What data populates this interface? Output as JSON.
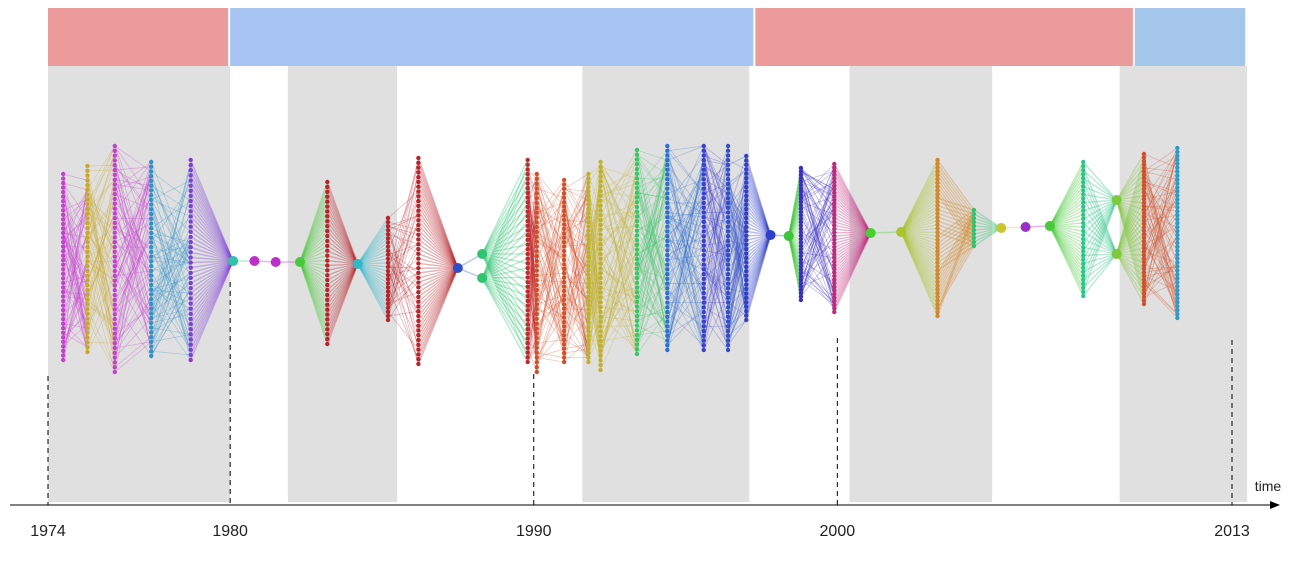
{
  "axis": {
    "label": "time",
    "start_year": 1974,
    "end_year": 2013,
    "tick_years": [
      {
        "year": 1974,
        "label": "1974"
      },
      {
        "year": 1980,
        "label": "1980"
      },
      {
        "year": 1990,
        "label": "1990"
      },
      {
        "year": 2000,
        "label": "2000"
      },
      {
        "year": 2013,
        "label": "2013"
      }
    ]
  },
  "colors": {
    "period_red": "#eb9b9b",
    "period_blue": "#a6c3f2",
    "period_blue_light": "#a3c6ea",
    "shade_gray": "#e0e0e0",
    "axis": "#000000"
  },
  "periods": [
    {
      "start": 1974,
      "end": 1980,
      "color": "#eb9b9b"
    },
    {
      "start": 1980,
      "end": 1997.3,
      "color": "#a6c3f2"
    },
    {
      "start": 1997.3,
      "end": 2009.8,
      "color": "#eb9b9b"
    },
    {
      "start": 2009.8,
      "end": 2013.5,
      "color": "#a3c6ea"
    }
  ],
  "shaded_bands": [
    {
      "start": 1974,
      "end": 1980
    },
    {
      "start": 1981.9,
      "end": 1985.5
    },
    {
      "start": 1991.6,
      "end": 1997.1
    },
    {
      "start": 2000.4,
      "end": 2005.1
    },
    {
      "start": 2009.3,
      "end": 2013.5
    }
  ],
  "layers": [
    {
      "year": 1974.5,
      "count": 42,
      "top": 174,
      "bottom": 360,
      "color": "#c73fd1"
    },
    {
      "year": 1975.3,
      "count": 40,
      "top": 166,
      "bottom": 352,
      "color": "#c9a92c"
    },
    {
      "year": 1976.2,
      "count": 48,
      "top": 146,
      "bottom": 372,
      "color": "#c73fd1"
    },
    {
      "year": 1977.4,
      "count": 42,
      "top": 162,
      "bottom": 356,
      "color": "#2f93c9"
    },
    {
      "year": 1978.7,
      "count": 40,
      "top": 160,
      "bottom": 360,
      "color": "#7f3fd6"
    },
    {
      "year": 1980.1,
      "count": 1,
      "top": 261,
      "bottom": 261,
      "color": "#2fc4a9",
      "big": true
    },
    {
      "year": 1980.8,
      "count": 1,
      "top": 261,
      "bottom": 261,
      "color": "#bd2fc9",
      "big": true
    },
    {
      "year": 1981.5,
      "count": 1,
      "top": 262,
      "bottom": 262,
      "color": "#bd2fc9",
      "big": true
    },
    {
      "year": 1982.3,
      "count": 1,
      "top": 262,
      "bottom": 262,
      "color": "#47c93a",
      "big": true
    },
    {
      "year": 1983.2,
      "count": 34,
      "top": 182,
      "bottom": 344,
      "color": "#b8242a"
    },
    {
      "year": 1984.2,
      "count": 1,
      "top": 264,
      "bottom": 264,
      "color": "#2fb8c9",
      "big": true
    },
    {
      "year": 1985.2,
      "count": 26,
      "top": 218,
      "bottom": 320,
      "color": "#b8242a"
    },
    {
      "year": 1986.2,
      "count": 44,
      "top": 158,
      "bottom": 364,
      "color": "#b8242a"
    },
    {
      "year": 1987.5,
      "count": 1,
      "top": 268,
      "bottom": 268,
      "color": "#2f4fc9",
      "big": true
    },
    {
      "year": 1988.3,
      "count": 2,
      "top": 254,
      "bottom": 278,
      "color": "#2fc46f",
      "big": true
    },
    {
      "year": 1989.8,
      "count": 44,
      "top": 160,
      "bottom": 362,
      "color": "#c0292d"
    },
    {
      "year": 1990.1,
      "count": 42,
      "top": 174,
      "bottom": 372,
      "color": "#d1502a"
    },
    {
      "year": 1991.0,
      "count": 42,
      "top": 180,
      "bottom": 362,
      "color": "#d1502a"
    },
    {
      "year": 1991.8,
      "count": 44,
      "top": 174,
      "bottom": 362,
      "color": "#c2b02a"
    },
    {
      "year": 1992.2,
      "count": 44,
      "top": 162,
      "bottom": 370,
      "color": "#c2b02a"
    },
    {
      "year": 1993.4,
      "count": 44,
      "top": 150,
      "bottom": 354,
      "color": "#3cc466"
    },
    {
      "year": 1994.4,
      "count": 44,
      "top": 146,
      "bottom": 350,
      "color": "#2f6fd1"
    },
    {
      "year": 1995.6,
      "count": 44,
      "top": 146,
      "bottom": 350,
      "color": "#3a3fd1"
    },
    {
      "year": 1996.4,
      "count": 44,
      "top": 146,
      "bottom": 350,
      "color": "#2f4fc9"
    },
    {
      "year": 1997.0,
      "count": 38,
      "top": 156,
      "bottom": 320,
      "color": "#2f3fc9"
    },
    {
      "year": 1997.8,
      "count": 1,
      "top": 235,
      "bottom": 235,
      "color": "#2f3fc9",
      "big": true
    },
    {
      "year": 1998.4,
      "count": 1,
      "top": 236,
      "bottom": 236,
      "color": "#3cc43a",
      "big": true
    },
    {
      "year": 1998.8,
      "count": 40,
      "top": 168,
      "bottom": 300,
      "color": "#3a2fbd"
    },
    {
      "year": 1999.9,
      "count": 42,
      "top": 164,
      "bottom": 312,
      "color": "#c0297a"
    },
    {
      "year": 2001.1,
      "count": 1,
      "top": 233,
      "bottom": 233,
      "color": "#47d12f",
      "big": true
    },
    {
      "year": 2002.1,
      "count": 1,
      "top": 232,
      "bottom": 232,
      "color": "#a9c42f",
      "big": true
    },
    {
      "year": 2003.3,
      "count": 42,
      "top": 160,
      "bottom": 316,
      "color": "#d1892f"
    },
    {
      "year": 2004.5,
      "count": 10,
      "top": 210,
      "bottom": 246,
      "color": "#2fc46f"
    },
    {
      "year": 2005.4,
      "count": 1,
      "top": 228,
      "bottom": 228,
      "color": "#c9c42f",
      "big": true
    },
    {
      "year": 2006.2,
      "count": 1,
      "top": 227,
      "bottom": 227,
      "color": "#9a2fc9",
      "big": true
    },
    {
      "year": 2007.0,
      "count": 1,
      "top": 226,
      "bottom": 226,
      "color": "#47c93a",
      "big": true
    },
    {
      "year": 2008.1,
      "count": 34,
      "top": 162,
      "bottom": 296,
      "color": "#2fc48a"
    },
    {
      "year": 2009.2,
      "count": 2,
      "top": 200,
      "bottom": 254,
      "color": "#7fc93a",
      "big": true
    },
    {
      "year": 2010.1,
      "count": 44,
      "top": 154,
      "bottom": 304,
      "color": "#d1502a"
    },
    {
      "year": 2011.2,
      "count": 44,
      "top": 148,
      "bottom": 318,
      "color": "#2f9bc9"
    }
  ]
}
